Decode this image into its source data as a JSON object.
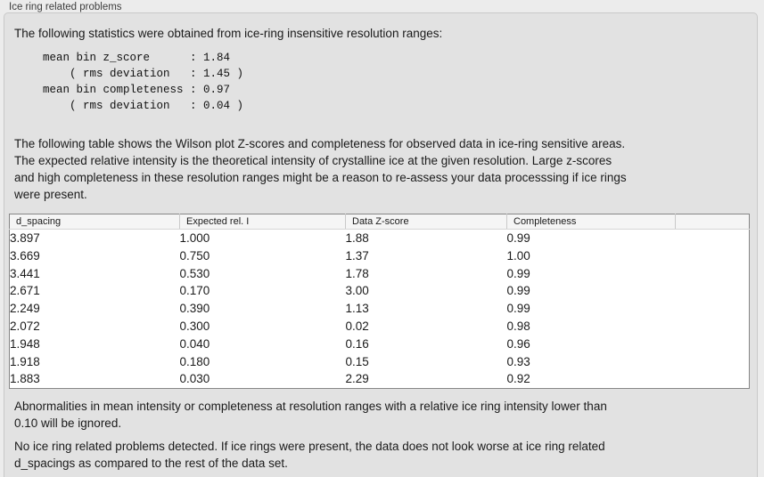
{
  "panel": {
    "title": "Ice ring related problems"
  },
  "intro": {
    "text": "The following statistics were obtained from ice-ring insensitive resolution ranges:",
    "stats_lines": [
      "mean bin z_score      : 1.84",
      "    ( rms deviation   : 1.45 )",
      "mean bin completeness : 0.97",
      "    ( rms deviation   : 0.04 )"
    ]
  },
  "description_lines": [
    "The following table shows the Wilson plot Z-scores and completeness for observed data in ice-ring sensitive areas.",
    "The expected relative intensity is the theoretical intensity of crystalline ice at the given resolution. Large z-scores",
    "and high completeness in these resolution ranges might be a reason to re-assess your data processsing if ice rings",
    "were present."
  ],
  "table": {
    "headers": [
      "d_spacing",
      "Expected rel. I",
      "Data Z-score",
      "Completeness",
      ""
    ],
    "rows": [
      [
        "3.897",
        "1.000",
        "1.88",
        "0.99"
      ],
      [
        "3.669",
        "0.750",
        "1.37",
        "1.00"
      ],
      [
        "3.441",
        "0.530",
        "1.78",
        "0.99"
      ],
      [
        "2.671",
        "0.170",
        "3.00",
        "0.99"
      ],
      [
        "2.249",
        "0.390",
        "1.13",
        "0.99"
      ],
      [
        "2.072",
        "0.300",
        "0.02",
        "0.98"
      ],
      [
        "1.948",
        "0.040",
        "0.16",
        "0.96"
      ],
      [
        "1.918",
        "0.180",
        "0.15",
        "0.93"
      ],
      [
        "1.883",
        "0.030",
        "2.29",
        "0.92"
      ]
    ]
  },
  "notes": {
    "ignore_lines": [
      "Abnormalities in mean intensity or completeness at resolution ranges with a relative ice ring intensity lower than",
      "0.10 will be ignored."
    ],
    "conclusion_lines": [
      "No ice ring related problems detected. If ice rings were present, the data does not look worse at ice ring related",
      "d_spacings as compared to the rest of the data set."
    ]
  },
  "colors": {
    "page_bg": "#ececec",
    "groupbox_bg": "#e2e2e2",
    "table_bg": "#ffffff",
    "table_header_bg": "#f5f5f5",
    "table_border": "#868686"
  }
}
